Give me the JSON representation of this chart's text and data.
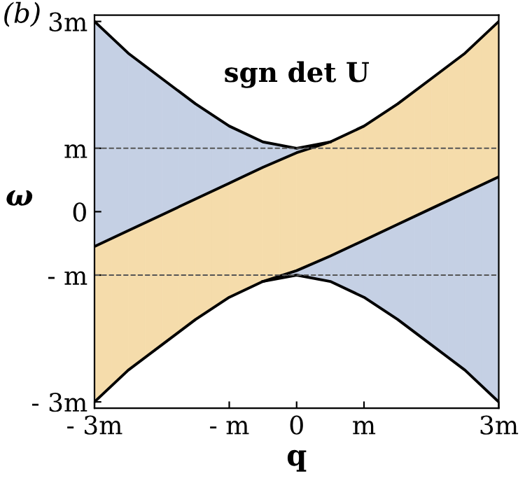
{
  "chart_data": {
    "type": "line",
    "title": "sgn det U",
    "xlabel": "q",
    "ylabel": "ω",
    "annotations": [
      "(b)"
    ],
    "xlim": [
      -3,
      3
    ],
    "ylim": [
      -3.1,
      3.1
    ],
    "xticks": [
      {
        "value": -3,
        "label": "- 3m"
      },
      {
        "value": -1,
        "label": "- m"
      },
      0,
      {
        "value": 1,
        "label": "m"
      },
      {
        "value": 3,
        "label": "3m"
      }
    ],
    "yticks": [
      {
        "value": -3,
        "label": "- 3m"
      },
      {
        "value": -1,
        "label": "- m"
      },
      0,
      {
        "value": 1,
        "label": "m"
      },
      {
        "value": 3,
        "label": "3m"
      }
    ],
    "ref_lines": [
      {
        "axis": "y",
        "value": 1,
        "line_style": "dashed",
        "color": "#555555"
      },
      {
        "axis": "y",
        "value": -1,
        "line_style": "dashed",
        "color": "#555555"
      }
    ],
    "series": [
      {
        "color": "#000000",
        "colors": [
          "#c5d0e4",
          "#c5d0e4",
          "#c5d0e4",
          "#c5d0e4",
          "#c5d0e4",
          "#c5d0e4",
          "#c5d0e4",
          "#c5d0e4"
        ],
        "x": [
          -3,
          -2.5,
          -2,
          -1.5,
          -1,
          -0.5,
          0,
          0.5
        ],
        "values": [
          3.0,
          2.5,
          2.1,
          1.7,
          1.35,
          1.1,
          1.0,
          1.1
        ],
        "lower": [
          -0.55,
          -0.3,
          -0.05,
          0.2,
          0.45,
          0.7,
          0.93,
          1.1
        ],
        "upper": [
          3.0,
          2.5,
          2.1,
          1.7,
          1.35,
          1.1,
          1.0,
          1.1
        ]
      },
      {
        "color": "#000000",
        "colors": [
          "#f5dcab",
          "#f5dcab",
          "#f5dcab",
          "#f5dcab",
          "#f5dcab",
          "#f5dcab",
          "#f5dcab",
          "#f5dcab",
          "#f5dcab",
          "#f5dcab",
          "#f5dcab",
          "#f5dcab",
          "#f5dcab"
        ],
        "x": [
          -3,
          -2.5,
          -2,
          -1.5,
          -1,
          -0.5,
          0,
          0.5,
          1,
          1.5,
          2,
          2.5,
          3
        ],
        "values": [
          -0.55,
          -0.3,
          -0.05,
          0.2,
          0.45,
          0.7,
          0.93,
          1.1,
          1.35,
          1.7,
          2.1,
          2.5,
          3.0
        ],
        "lower": [
          -3.0,
          -2.5,
          -2.1,
          -1.7,
          -1.35,
          -1.1,
          -0.93,
          -0.7,
          -0.45,
          -0.2,
          0.05,
          0.3,
          0.55
        ],
        "upper": [
          -0.55,
          -0.3,
          -0.05,
          0.2,
          0.45,
          0.7,
          0.93,
          1.1,
          1.35,
          1.7,
          2.1,
          2.5,
          3.0
        ]
      },
      {
        "color": "#000000",
        "x": [
          -3,
          -2.5,
          -2,
          -1.5,
          -1,
          -0.5,
          0,
          0.5,
          1,
          1.5,
          2,
          2.5,
          3
        ],
        "values": [
          -3.0,
          -2.5,
          -2.1,
          -1.7,
          -1.35,
          -1.1,
          -0.93,
          -0.7,
          -0.45,
          -0.2,
          0.05,
          0.3,
          0.55
        ]
      },
      {
        "color": "#000000",
        "colors": [
          "#c5d0e4",
          "#c5d0e4",
          "#c5d0e4",
          "#c5d0e4",
          "#c5d0e4",
          "#c5d0e4",
          "#c5d0e4",
          "#c5d0e4"
        ],
        "x": [
          -0.5,
          0,
          0.5,
          1,
          1.5,
          2,
          2.5,
          3
        ],
        "values": [
          -1.1,
          -1.0,
          -1.1,
          -1.35,
          -1.7,
          -2.1,
          -2.5,
          -3.0
        ],
        "lower": [
          -1.1,
          -1.0,
          -1.1,
          -1.35,
          -1.7,
          -2.1,
          -2.5,
          -3.0
        ],
        "upper": [
          -1.1,
          -0.93,
          -0.7,
          -0.45,
          -0.2,
          0.05,
          0.3,
          0.55
        ]
      }
    ]
  }
}
